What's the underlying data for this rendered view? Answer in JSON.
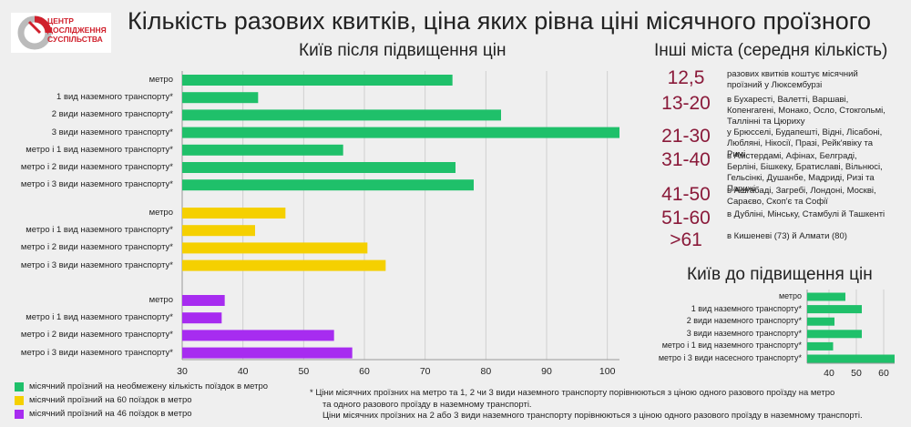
{
  "title": "Кількість разових квитків, ціна яких рівна ціні місячного проїзного",
  "logo": {
    "line1": "ЦЕНТР",
    "line2": "ДОСЛІДЖЕННЯ",
    "line3": "СУСПІЛЬСТВА"
  },
  "main_chart_title": "Київ після підвищення цін",
  "others_title": "Інші міста (середня кількість)",
  "small_chart_title": "Київ до підвищення цін",
  "colors": {
    "green": "#1fc06a",
    "yellow": "#f5d000",
    "purple": "#a72cf0",
    "accent": "#8a1a3a"
  },
  "chart_data": [
    {
      "type": "bar",
      "orientation": "horizontal",
      "title": "Київ після підвищення цін",
      "xlim": [
        30,
        102
      ],
      "xticks": [
        30,
        40,
        50,
        60,
        70,
        80,
        90,
        100
      ],
      "groups": [
        {
          "name": "місячний проїзний на необмежену кількість поїздок в метро",
          "color": "#1fc06a",
          "categories": [
            "метро",
            "1 вид наземного транспорту*",
            "2 види наземного транспорту*",
            "3 види наземного транспорту*",
            "метро і 1 вид наземного транспорту*",
            "метро і 2 види наземного транспорту*",
            "метро і 3 види наземного транспорту*"
          ],
          "values": [
            74.5,
            42.5,
            82.5,
            102,
            56.5,
            75,
            78
          ]
        },
        {
          "name": "місячний проїзний на 60 поїздок в метро",
          "color": "#f5d000",
          "categories": [
            "метро",
            "метро і 1 вид наземного транспорту*",
            "метро і 2 види наземного транспорту*",
            "метро і 3 види наземного транспорту*"
          ],
          "values": [
            47,
            42,
            60.5,
            63.5
          ]
        },
        {
          "name": "місячний проїзний на 46 поїздок в метро",
          "color": "#a72cf0",
          "categories": [
            "метро",
            "метро і 1 вид наземного транспорту*",
            "метро і 2 види наземного транспорту*",
            "метро і 3 види наземного транспорту*"
          ],
          "values": [
            37,
            36.5,
            55,
            58
          ]
        }
      ]
    },
    {
      "type": "bar",
      "orientation": "horizontal",
      "title": "Київ до підвищення цін",
      "xlim": [
        32,
        64
      ],
      "xticks": [
        40,
        50,
        60
      ],
      "series": [
        {
          "name": "до підвищення",
          "color": "#1fc06a",
          "categories": [
            "метро",
            "1 вид наземного транспорту*",
            "2 види наземного транспорту*",
            "3 види наземного транспорту*",
            "метро і 1 вид наземного транспорту*",
            "метро і 3 види насесного транспорту*"
          ],
          "values": [
            46,
            52,
            42,
            52,
            41.5,
            64
          ]
        }
      ]
    }
  ],
  "legend": [
    {
      "label": "місячний проїзний на необмежену кількість поїздок в метро",
      "color": "#1fc06a"
    },
    {
      "label": "місячний проїзний на 60 поїздок в метро",
      "color": "#f5d000"
    },
    {
      "label": "місячний проїзний на 46 поїздок в метро",
      "color": "#a72cf0"
    }
  ],
  "others": [
    {
      "range": "12,5",
      "text": "разових квитків коштує місячний проїзний у Люксембурзі"
    },
    {
      "range": "13-20",
      "text": "в Бухаресті, Валетті, Варшаві, Копенгагені, Монако, Осло, Стокгольмі, Таллінні та Цюриху"
    },
    {
      "range": "21-30",
      "text": "у Брюсселі, Будапешті, Відні, Лісабоні, Любляні, Нікосії, Празі, Рейк'явіку та Римі"
    },
    {
      "range": "31-40",
      "text": "в Амстердамі, Афінах, Белграді, Берліні, Бішкеку, Братиславі, Вільнюсі, Гельсінкі, Душанбе, Мадриді, Ризі та Парижі"
    },
    {
      "range": "41-50",
      "text": "в Ашгабаді, Загребі, Лондоні, Москві, Сараєво, Скоп'є та Софії"
    },
    {
      "range": "51-60",
      "text": "в Дубліні, Мінську, Стамбулі й Ташкенті"
    },
    {
      "range": ">61",
      "text": "в Кишеневі (73) й Алмати (80)"
    }
  ],
  "footnote": {
    "line1": "*  Ціни місячних проїзних на метро та 1, 2 чи 3 види наземного транспорту порівнюються з ціною одного разового проїзду на метро",
    "line2": "та одного разового проїзду в наземному транспорті.",
    "line3": "Ціни місячних проїзних на 2 або 3 види наземного транспорту порівнюються з ціною одного разового проїзду в наземному транспорті."
  }
}
